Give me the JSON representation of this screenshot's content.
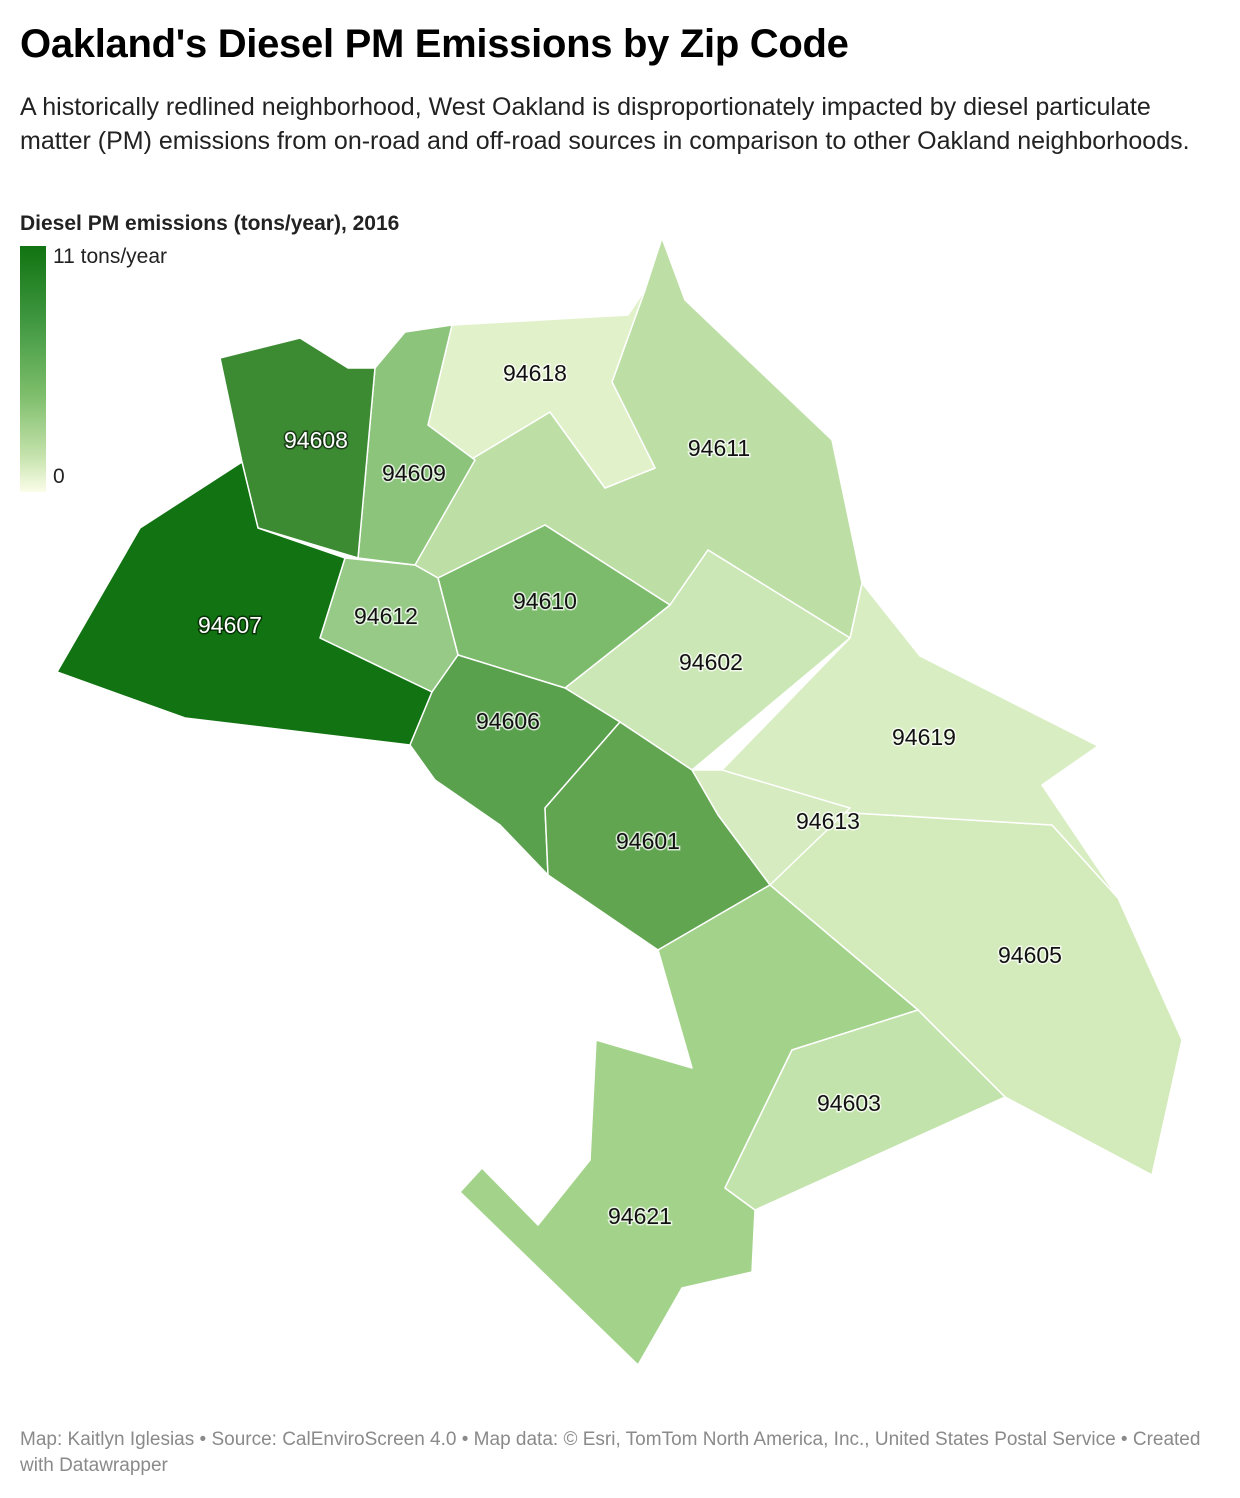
{
  "header": {
    "title": "Oakland's Diesel PM Emissions by Zip Code",
    "subtitle": "A historically redlined neighborhood, West Oakland is disproportionately impacted by diesel particulate matter (PM) emissions from on-road and off-road sources in comparison to other Oakland neighborhoods."
  },
  "legend": {
    "title": "Diesel PM emissions (tons/year), 2016",
    "max_label": "11 tons/year",
    "min_label": "0",
    "color_low": "#fbfde9",
    "color_high": "#117311"
  },
  "map": {
    "regions": [
      {
        "zip": "94607",
        "label": "94607",
        "fill": "#117311"
      },
      {
        "zip": "94608",
        "label": "94608",
        "fill": "#3c8b33"
      },
      {
        "zip": "94606",
        "label": "94606",
        "fill": "#5aa14e"
      },
      {
        "zip": "94601",
        "label": "94601",
        "fill": "#62a550"
      },
      {
        "zip": "94610",
        "label": "94610",
        "fill": "#7dbb6c"
      },
      {
        "zip": "94609",
        "label": "94609",
        "fill": "#8bc47a"
      },
      {
        "zip": "94612",
        "label": "94612",
        "fill": "#97ca86"
      },
      {
        "zip": "94621",
        "label": "94621",
        "fill": "#a3d38b"
      },
      {
        "zip": "94611",
        "label": "94611",
        "fill": "#bddfa6"
      },
      {
        "zip": "94603",
        "label": "94603",
        "fill": "#c3e3ac"
      },
      {
        "zip": "94602",
        "label": "94602",
        "fill": "#cbe7b5"
      },
      {
        "zip": "94605",
        "label": "94605",
        "fill": "#d3eabb"
      },
      {
        "zip": "94613",
        "label": "94613",
        "fill": "#d6ecc0"
      },
      {
        "zip": "94619",
        "label": "94619",
        "fill": "#d9edc3"
      },
      {
        "zip": "94618",
        "label": "94618",
        "fill": "#e1f1c9"
      }
    ]
  },
  "footer": {
    "credit": "Map: Kaitlyn Iglesias • Source: CalEnviroScreen 4.0 • Map data: © Esri, TomTom North America, Inc., United States Postal Service  • Created with Datawrapper"
  }
}
